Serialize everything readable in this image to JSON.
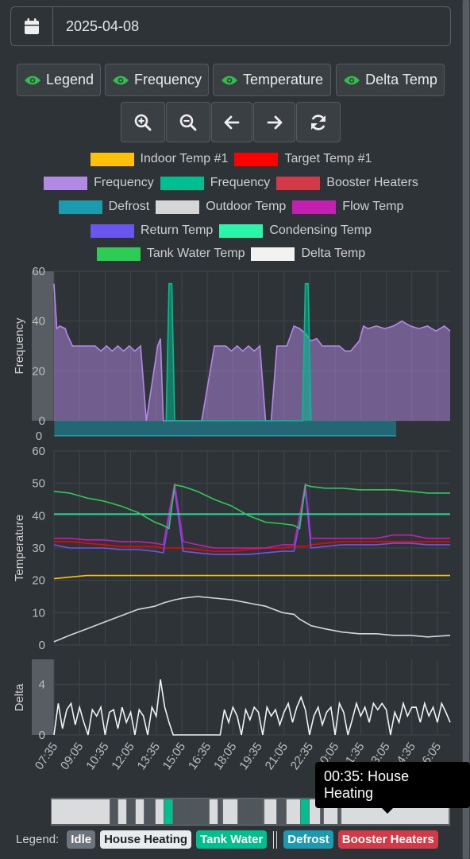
{
  "date": {
    "value": "2025-04-08"
  },
  "toggles": [
    {
      "label": "Legend",
      "icon": "eye-icon"
    },
    {
      "label": "Frequency",
      "icon": "eye-icon"
    },
    {
      "label": "Temperature",
      "icon": "eye-icon"
    },
    {
      "label": "Delta Temp",
      "icon": "eye-icon"
    }
  ],
  "toolbar": [
    {
      "name": "zoom-in-button",
      "icon": "zoom-in-icon"
    },
    {
      "name": "zoom-out-button",
      "icon": "zoom-out-icon"
    },
    {
      "name": "pan-left-button",
      "icon": "arrow-left-icon"
    },
    {
      "name": "pan-right-button",
      "icon": "arrow-right-icon"
    },
    {
      "name": "reset-button",
      "icon": "refresh-icon"
    }
  ],
  "legend": [
    {
      "label": "Indoor Temp #1",
      "color": "#ffc107"
    },
    {
      "label": "Target Temp #1",
      "color": "#ff0000"
    },
    {
      "label": "Frequency",
      "color": "#b389e6"
    },
    {
      "label": "Frequency",
      "color": "#00bf8f"
    },
    {
      "label": "Booster Heaters",
      "color": "#d33a47"
    },
    {
      "label": "Defrost",
      "color": "#1a9bb0"
    },
    {
      "label": "Outdoor Temp",
      "color": "#d6d6d6"
    },
    {
      "label": "Flow Temp",
      "color": "#c41fb0"
    },
    {
      "label": "Return Temp",
      "color": "#6b55f0"
    },
    {
      "label": "Condensing Temp",
      "color": "#2bf5a8"
    },
    {
      "label": "Tank Water Temp",
      "color": "#2ecc55"
    },
    {
      "label": "Delta Temp",
      "color": "#f2f2f2"
    }
  ],
  "chart_data": [
    {
      "type": "area",
      "ylabel": "Frequency",
      "ylim": [
        0,
        60
      ],
      "yticks": [
        0,
        20,
        40,
        60
      ],
      "series": [
        {
          "name": "Frequency",
          "color": "#b389e6",
          "x": [
            "07:35",
            "07:45",
            "07:55",
            "08:15",
            "08:20",
            "08:40",
            "09:20",
            "09:40",
            "10:00",
            "10:20",
            "10:40",
            "11:00",
            "11:20",
            "11:40",
            "12:00",
            "12:20",
            "12:40",
            "13:00",
            "13:40",
            "13:50",
            "14:00",
            "14:40",
            "15:15",
            "15:30",
            "16:15",
            "17:00",
            "17:20",
            "17:40",
            "18:00",
            "18:20",
            "18:40",
            "19:00",
            "19:20",
            "19:40",
            "20:00",
            "20:20",
            "20:40",
            "21:00",
            "21:15",
            "21:40",
            "22:00",
            "22:20",
            "22:40",
            "23:00",
            "23:20",
            "23:40",
            "00:00",
            "00:20",
            "00:40",
            "01:00",
            "01:30",
            "01:45",
            "02:00",
            "02:30",
            "03:00",
            "03:30",
            "04:00",
            "04:30",
            "05:00",
            "05:30",
            "06:00",
            "06:30",
            "06:50"
          ],
          "y": [
            55,
            37,
            38,
            37,
            35,
            30,
            30,
            30,
            30,
            28,
            30,
            28,
            30,
            28,
            30,
            28,
            30,
            0,
            30,
            33,
            0,
            0,
            0,
            0,
            0,
            30,
            30,
            30,
            28,
            30,
            28,
            30,
            28,
            30,
            0,
            0,
            30,
            30,
            30,
            38,
            37,
            35,
            32,
            33,
            30,
            30,
            30,
            30,
            28,
            28,
            32,
            38,
            37,
            38,
            37,
            38,
            40,
            38,
            37,
            38,
            36,
            38,
            36
          ]
        },
        {
          "name": "Frequency",
          "color": "#00bf8f",
          "x": [
            "14:10",
            "14:20",
            "14:30",
            "14:40",
            "22:10",
            "22:20",
            "22:30",
            "22:40"
          ],
          "y": [
            0,
            55,
            55,
            0,
            0,
            55,
            55,
            0
          ]
        },
        {
          "name": "Defrost",
          "color": "#1a9bb0",
          "x": [
            "07:36",
            "03:40"
          ],
          "y": [
            -6,
            -6
          ]
        }
      ]
    },
    {
      "type": "line",
      "ylabel": "Temperature",
      "ylim": [
        0,
        60
      ],
      "yticks": [
        0,
        10,
        20,
        30,
        40,
        50,
        60
      ],
      "x": [
        "07:35",
        "08:30",
        "09:30",
        "10:30",
        "11:30",
        "12:30",
        "13:30",
        "14:00",
        "14:20",
        "14:40",
        "15:10",
        "16:00",
        "17:00",
        "18:00",
        "19:00",
        "20:00",
        "21:00",
        "21:40",
        "22:00",
        "22:20",
        "22:40",
        "23:30",
        "00:30",
        "01:30",
        "02:30",
        "03:30",
        "04:30",
        "05:30",
        "06:50"
      ],
      "series": [
        {
          "name": "Indoor Temp #1",
          "color": "#ffc107",
          "y": [
            20.5,
            21,
            21.5,
            21.5,
            21.5,
            21.5,
            21.5,
            21.5,
            21.5,
            21.5,
            21.5,
            21.5,
            21.5,
            21.5,
            21.5,
            21.5,
            21.5,
            21.5,
            21.5,
            21.5,
            21.5,
            21.5,
            21.5,
            21.5,
            21.5,
            21.5,
            21.5,
            21.5,
            21.5
          ]
        },
        {
          "name": "Target Temp #1",
          "color": "#ff0000",
          "y": [
            32,
            32,
            31.5,
            31,
            30.5,
            30.5,
            30.5,
            30,
            30,
            30,
            30,
            29.5,
            29,
            29,
            29.5,
            30,
            30,
            30.5,
            30.5,
            30.5,
            31,
            31.5,
            32,
            32,
            32,
            32,
            32,
            32,
            32
          ]
        },
        {
          "name": "Outdoor Temp",
          "color": "#d6d6d6",
          "y": [
            1,
            3,
            5,
            7,
            9,
            11,
            12,
            13,
            13.5,
            14,
            14.5,
            15,
            14.5,
            14,
            13,
            12,
            10,
            9.5,
            8,
            7,
            6,
            5,
            4,
            3.5,
            3.5,
            3,
            3,
            2.5,
            3
          ]
        },
        {
          "name": "Flow Temp",
          "color": "#c41fb0",
          "y": [
            33,
            33,
            32.5,
            32.5,
            32,
            32,
            31.5,
            31,
            41,
            50,
            32,
            31,
            30,
            30,
            30,
            30,
            31,
            31,
            40,
            50,
            33,
            33,
            33,
            33,
            33,
            34,
            34,
            33,
            33
          ]
        },
        {
          "name": "Return Temp",
          "color": "#6b55f0",
          "y": [
            31,
            30,
            30,
            30,
            29.5,
            29.5,
            29,
            28.5,
            39,
            48,
            29,
            28.5,
            28,
            28,
            28,
            28.5,
            29,
            29,
            38,
            48,
            30,
            30.5,
            31,
            31,
            31,
            31.5,
            31.5,
            31,
            31
          ]
        },
        {
          "name": "Condensing Temp",
          "color": "#2bf5a8",
          "y": [
            40.5,
            40.5,
            40.5,
            40.5,
            40.5,
            40.5,
            40.5,
            40.5,
            40.5,
            40.5,
            40.5,
            40.5,
            40.5,
            40.5,
            40.5,
            40.5,
            40.5,
            40.5,
            40.5,
            40.5,
            40.5,
            40.5,
            40.5,
            40.5,
            40.5,
            40.5,
            40.5,
            40.5,
            40.5
          ]
        },
        {
          "name": "Tank Water Temp",
          "color": "#2ecc55",
          "y": [
            47.5,
            47,
            45.5,
            44.5,
            43,
            41,
            38,
            37,
            36,
            49.5,
            49,
            47.5,
            45,
            43,
            40,
            38,
            37.5,
            37,
            36,
            49.5,
            49,
            48.5,
            48.5,
            48,
            48,
            48,
            47.5,
            47,
            47
          ]
        }
      ]
    },
    {
      "type": "line",
      "ylabel": "Delta",
      "ylim": [
        0,
        6
      ],
      "yticks": [
        0,
        4
      ],
      "series": [
        {
          "name": "Delta Temp",
          "color": "#f2f2f2",
          "x": [
            "07:35",
            "07:50",
            "08:05",
            "08:20",
            "08:35",
            "08:50",
            "09:05",
            "09:20",
            "09:35",
            "09:50",
            "10:05",
            "10:20",
            "10:35",
            "10:50",
            "11:05",
            "11:20",
            "11:35",
            "11:50",
            "12:05",
            "12:20",
            "12:35",
            "12:50",
            "13:05",
            "13:20",
            "13:35",
            "13:50",
            "14:05",
            "14:20",
            "14:35",
            "14:50",
            "15:05",
            "15:50",
            "16:35",
            "17:20",
            "17:35",
            "17:50",
            "18:05",
            "18:20",
            "18:35",
            "18:50",
            "19:05",
            "19:20",
            "19:35",
            "19:50",
            "20:05",
            "20:20",
            "20:35",
            "20:50",
            "21:05",
            "21:20",
            "21:35",
            "21:50",
            "22:05",
            "22:20",
            "22:35",
            "22:50",
            "23:05",
            "23:20",
            "23:35",
            "23:50",
            "00:05",
            "00:20",
            "00:35",
            "00:50",
            "01:05",
            "01:20",
            "01:35",
            "01:50",
            "02:05",
            "02:20",
            "02:35",
            "02:50",
            "03:05",
            "03:20",
            "03:35",
            "03:50",
            "04:05",
            "04:20",
            "04:35",
            "04:50",
            "05:05",
            "05:20",
            "05:35",
            "05:50",
            "06:05",
            "06:20",
            "06:35",
            "06:50"
          ],
          "y": [
            0,
            2.5,
            0.5,
            2,
            2.5,
            0.8,
            2.2,
            1,
            0,
            2,
            1.5,
            2.2,
            0,
            1.8,
            2,
            0.5,
            2.2,
            1,
            1.8,
            0,
            2,
            1.5,
            0,
            2.2,
            1.5,
            4.4,
            2.2,
            1,
            0,
            0,
            0,
            0,
            0,
            0,
            2,
            1,
            2.2,
            1.5,
            0,
            2,
            1.2,
            2.2,
            1.8,
            0,
            2.2,
            1.5,
            2,
            0.8,
            1.8,
            2.5,
            1,
            2.2,
            3,
            2,
            0,
            1.5,
            2.2,
            0.8,
            1.8,
            2.2,
            0,
            2.5,
            1.8,
            0,
            1.2,
            2.5,
            1.5,
            2.2,
            1,
            2.5,
            2,
            2.5,
            2,
            0,
            1.8,
            1,
            2.5,
            1.5,
            2.2,
            2.2,
            1,
            2.5,
            1.5,
            2.2,
            1,
            2.5,
            1.8,
            1
          ]
        }
      ]
    }
  ],
  "xaxis": {
    "ticks": [
      "07:35",
      "09:05",
      "10:35",
      "12:05",
      "13:35",
      "15:05",
      "16:35",
      "18:05",
      "19:35",
      "21:05",
      "22:35",
      "00:05",
      "01:35",
      "03:05",
      "04:35",
      "06:05"
    ]
  },
  "timeline": {
    "tooltip": "00:35: House Heating",
    "segments": [
      {
        "state": "House Heating",
        "color": "#d9dbdd",
        "start": "07:35",
        "end": "11:00"
      },
      {
        "state": "Idle",
        "color": "#4f565c",
        "start": "11:00",
        "end": "11:30"
      },
      {
        "state": "House Heating",
        "color": "#d9dbdd",
        "start": "11:30",
        "end": "12:00"
      },
      {
        "state": "Idle",
        "color": "#4f565c",
        "start": "12:00",
        "end": "12:30"
      },
      {
        "state": "House Heating",
        "color": "#d9dbdd",
        "start": "12:30",
        "end": "13:00"
      },
      {
        "state": "Idle",
        "color": "#4f565c",
        "start": "13:00",
        "end": "13:40"
      },
      {
        "state": "House Heating",
        "color": "#d9dbdd",
        "start": "13:40",
        "end": "14:10"
      },
      {
        "state": "Tank Water",
        "color": "#00bf8f",
        "start": "14:10",
        "end": "14:40"
      },
      {
        "state": "Idle",
        "color": "#4f565c",
        "start": "14:40",
        "end": "16:50"
      },
      {
        "state": "House Heating",
        "color": "#d9dbdd",
        "start": "16:50",
        "end": "17:20"
      },
      {
        "state": "Idle",
        "color": "#4f565c",
        "start": "17:20",
        "end": "17:35"
      },
      {
        "state": "House Heating",
        "color": "#d9dbdd",
        "start": "17:35",
        "end": "18:30"
      },
      {
        "state": "Idle",
        "color": "#4f565c",
        "start": "18:30",
        "end": "20:00"
      },
      {
        "state": "House Heating",
        "color": "#d9dbdd",
        "start": "20:00",
        "end": "20:45"
      },
      {
        "state": "Idle",
        "color": "#4f565c",
        "start": "20:45",
        "end": "21:20"
      },
      {
        "state": "House Heating",
        "color": "#d9dbdd",
        "start": "21:20",
        "end": "22:10"
      },
      {
        "state": "Tank Water",
        "color": "#00bf8f",
        "start": "22:10",
        "end": "22:40"
      },
      {
        "state": "House Heating",
        "color": "#d9dbdd",
        "start": "22:40",
        "end": "23:20"
      },
      {
        "state": "Idle",
        "color": "#4f565c",
        "start": "23:20",
        "end": "23:30"
      },
      {
        "state": "House Heating",
        "color": "#d9dbdd",
        "start": "23:30",
        "end": "00:20"
      },
      {
        "state": "Idle",
        "color": "#4f565c",
        "start": "00:20",
        "end": "00:30"
      },
      {
        "state": "House Heating",
        "color": "#d9dbdd",
        "start": "00:30",
        "end": "06:50"
      }
    ]
  },
  "state_legend": {
    "label": "Legend:",
    "items": [
      {
        "label": "Idle",
        "bg": "#6c757d",
        "fg": "#ffffff"
      },
      {
        "label": "House Heating",
        "bg": "#e9ecef",
        "fg": "#222222"
      },
      {
        "label": "Tank Water",
        "bg": "#00bf8f",
        "fg": "#ffffff"
      },
      {
        "label": "Defrost",
        "bg": "#1a9bb0",
        "fg": "#ffffff"
      },
      {
        "label": "Booster Heaters",
        "bg": "#d33a47",
        "fg": "#ffffff"
      }
    ]
  }
}
